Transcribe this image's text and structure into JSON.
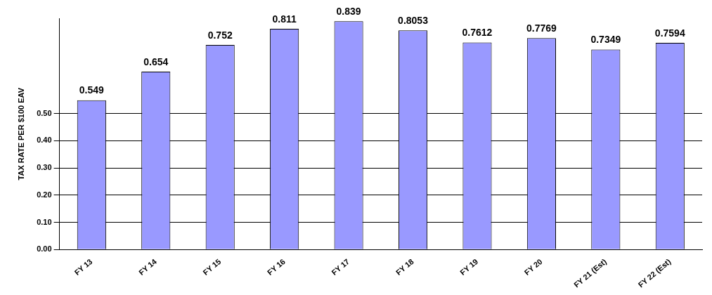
{
  "chart_data": {
    "type": "bar",
    "ylabel": "TAX RATE PER $100 EAV",
    "categories": [
      "FY 13",
      "FY 14",
      "FY 15",
      "FY 16",
      "FY 17",
      "FY 18",
      "FY 19",
      "FY 20",
      "FY 21 (Est)",
      "FY 22 (Est)"
    ],
    "values": [
      0.549,
      0.654,
      0.752,
      0.811,
      0.839,
      0.8053,
      0.7612,
      0.7769,
      0.7349,
      0.7594
    ],
    "color": "#9999ff",
    "data_labels": true,
    "grid": "y",
    "legend": false,
    "ylim": [
      0,
      0.85
    ],
    "yticks": [
      {
        "value": 0,
        "label": "0.00"
      },
      {
        "value": 0.1,
        "label": "0.10"
      },
      {
        "value": 0.2,
        "label": "0.20"
      },
      {
        "value": 0.3,
        "label": "0.30"
      },
      {
        "value": 0.4,
        "label": "0.40"
      },
      {
        "value": 0.5,
        "label": "0.50"
      }
    ]
  }
}
